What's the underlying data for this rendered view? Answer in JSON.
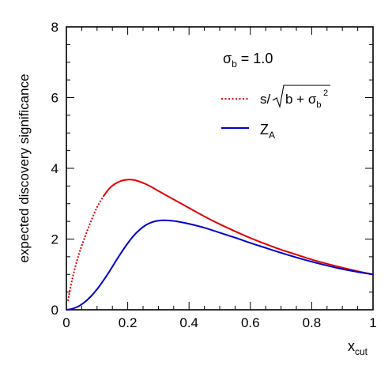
{
  "chart_data": {
    "type": "line",
    "xlabel": {
      "base": "x",
      "sub": "cut"
    },
    "ylabel": "expected discovery significance",
    "xlim": [
      0,
      1
    ],
    "ylim": [
      0,
      8
    ],
    "xticks": [
      0,
      0.2,
      0.4,
      0.6,
      0.8,
      1
    ],
    "xtick_labels": [
      "0",
      "0.2",
      "0.4",
      "0.6",
      "0.8",
      "1"
    ],
    "yticks": [
      0,
      2,
      4,
      6,
      8
    ],
    "ytick_labels": [
      "0",
      "2",
      "4",
      "6",
      "8"
    ],
    "grid": false,
    "legend_placement": "top-right",
    "annotation": {
      "sigma": "σ",
      "sub": "b",
      "text": " = 1.0"
    },
    "series": [
      {
        "name": "s/√(b + σ_b²)",
        "legend": {
          "s": "s/",
          "b": "b + σ",
          "sub": "b",
          "sup": "2"
        },
        "color": "#e00000",
        "style": "dotted-near-zero, then solid",
        "x": [
          0.005,
          0.02,
          0.04,
          0.06,
          0.08,
          0.1,
          0.12,
          0.14,
          0.16,
          0.18,
          0.2,
          0.22,
          0.24,
          0.26,
          0.28,
          0.3,
          0.35,
          0.4,
          0.45,
          0.5,
          0.55,
          0.6,
          0.65,
          0.7,
          0.75,
          0.8,
          0.85,
          0.9,
          0.95,
          1.0
        ],
        "y": [
          0.25,
          0.9,
          1.55,
          2.05,
          2.5,
          2.9,
          3.2,
          3.43,
          3.57,
          3.65,
          3.68,
          3.67,
          3.62,
          3.55,
          3.46,
          3.36,
          3.12,
          2.88,
          2.64,
          2.42,
          2.22,
          2.03,
          1.86,
          1.7,
          1.56,
          1.42,
          1.3,
          1.19,
          1.09,
          1.0
        ]
      },
      {
        "name": "Z_A",
        "legend": {
          "base": "Z",
          "sub": "A"
        },
        "color": "#0000cc",
        "style": "solid",
        "x": [
          0.0,
          0.02,
          0.04,
          0.06,
          0.08,
          0.1,
          0.12,
          0.14,
          0.16,
          0.18,
          0.2,
          0.22,
          0.24,
          0.26,
          0.28,
          0.3,
          0.32,
          0.34,
          0.36,
          0.4,
          0.45,
          0.5,
          0.55,
          0.6,
          0.65,
          0.7,
          0.75,
          0.8,
          0.85,
          0.9,
          0.95,
          1.0
        ],
        "y": [
          0.0,
          0.03,
          0.1,
          0.22,
          0.38,
          0.58,
          0.82,
          1.08,
          1.36,
          1.63,
          1.88,
          2.1,
          2.27,
          2.4,
          2.48,
          2.52,
          2.53,
          2.52,
          2.5,
          2.43,
          2.32,
          2.18,
          2.04,
          1.89,
          1.75,
          1.61,
          1.48,
          1.36,
          1.25,
          1.15,
          1.07,
          1.0
        ]
      }
    ]
  }
}
